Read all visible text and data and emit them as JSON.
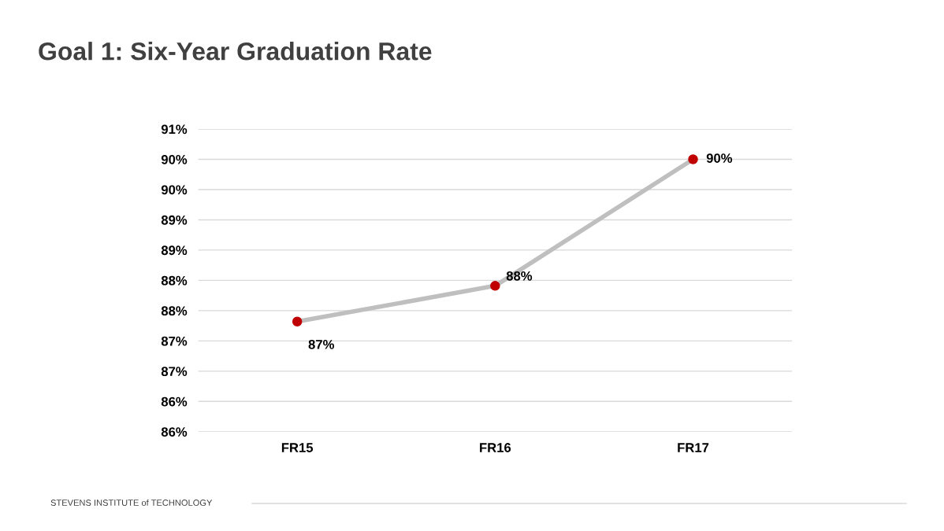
{
  "chart_data": {
    "type": "line",
    "title": "Goal 1: Six-Year Graduation Rate",
    "categories": [
      "FR15",
      "FR16",
      "FR17"
    ],
    "series": [
      {
        "color": "#bfbfbf",
        "colors": [
          "#c00000",
          "#c00000",
          "#c00000"
        ],
        "values": [
          87.32,
          87.91,
          90.0
        ],
        "value_labels": [
          "87%",
          "88%",
          "90%"
        ]
      }
    ],
    "ylim": [
      85.5,
      90.5
    ],
    "yticks": [
      {
        "value": 85.5,
        "label": "86%"
      },
      {
        "value": 86.0,
        "label": "86%"
      },
      {
        "value": 86.5,
        "label": "87%"
      },
      {
        "value": 87.0,
        "label": "87%"
      },
      {
        "value": 87.5,
        "label": "88%"
      },
      {
        "value": 88.0,
        "label": "88%"
      },
      {
        "value": 88.5,
        "label": "89%"
      },
      {
        "value": 89.0,
        "label": "89%"
      },
      {
        "value": 89.5,
        "label": "90%"
      },
      {
        "value": 90.0,
        "label": "90%"
      },
      {
        "value": 90.5,
        "label": "91%"
      }
    ],
    "grid": "y",
    "marker": "circle",
    "line_style": "solid",
    "annotations": [
      "STEVENS INSTITUTE of TECHNOLOGY"
    ]
  }
}
